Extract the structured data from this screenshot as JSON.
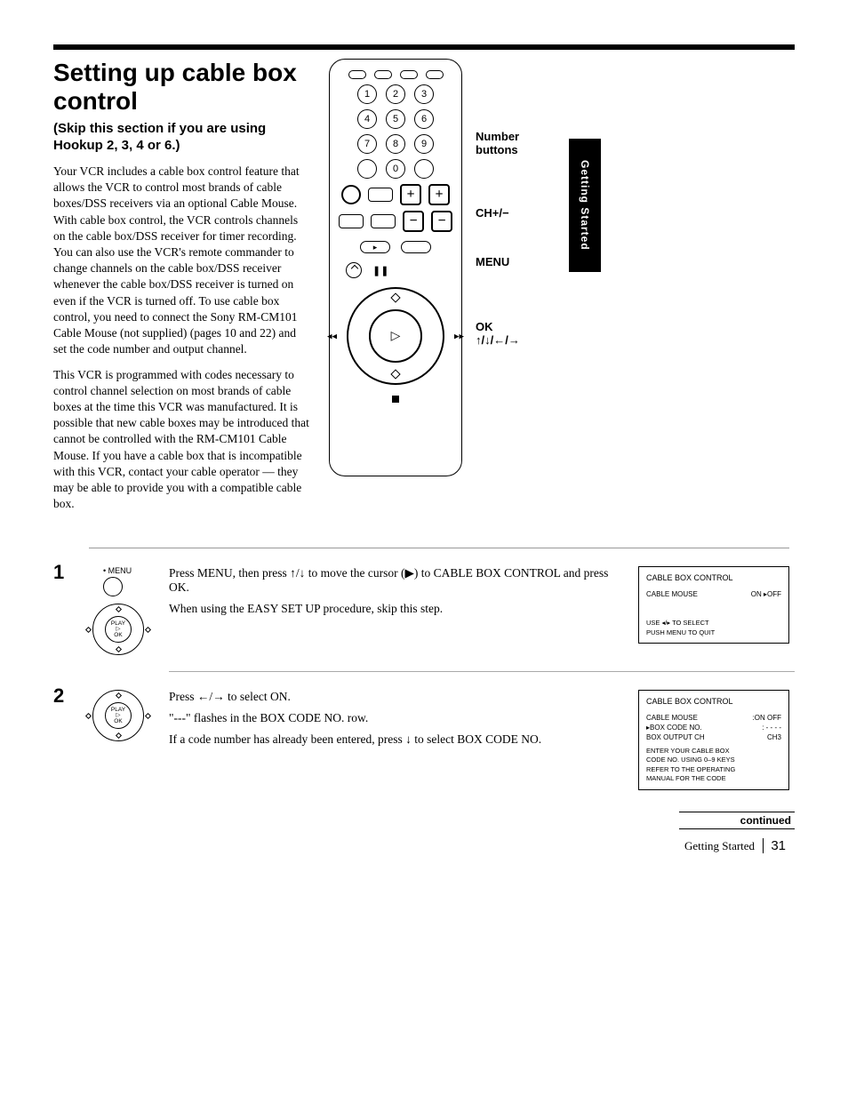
{
  "page": {
    "title": "Setting up cable box control",
    "subtitle": "(Skip this section if you are using Hookup 2, 3, 4 or 6.)",
    "para1": "Your VCR includes a cable box control feature that allows the VCR to control most brands of cable boxes/DSS receivers via an optional Cable Mouse. With cable box control, the VCR controls channels on the cable box/DSS receiver for timer recording. You can also use the VCR's remote commander to change channels on the cable box/DSS receiver whenever the cable box/DSS receiver is turned on even if the VCR is turned off. To use cable box control, you need to connect the Sony RM-CM101 Cable Mouse (not supplied) (pages 10 and 22) and set the code number and output channel.",
    "para2": "This VCR is programmed with codes necessary to control channel selection on most brands of cable boxes at the time this VCR was manufactured. It is possible that new cable boxes may be introduced that cannot be controlled with the RM-CM101 Cable Mouse. If you have a cable box that is incompatible with this VCR, contact your cable operator — they may be able to provide you with a compatible cable box."
  },
  "remote": {
    "num1": "1",
    "num2": "2",
    "num3": "3",
    "num4": "4",
    "num5": "5",
    "num6": "6",
    "num7": "7",
    "num8": "8",
    "num9": "9",
    "num0": "0",
    "plus": "+",
    "minus": "−",
    "menu_pill": "▸",
    "play": "▷"
  },
  "callouts": {
    "c1a": "Number",
    "c1b": "buttons",
    "c2": "CH+/−",
    "c3": "MENU",
    "c4a": "OK",
    "c4b": "↑/↓/←/→"
  },
  "tab": "Getting Started",
  "steps": {
    "s1": {
      "num": "1",
      "menu_label": "• MENU",
      "text1": "Press MENU, then press ↑/↓ to move the cursor (▶) to CABLE BOX CONTROL and press OK.",
      "text2": "When using the EASY SET UP procedure, skip this step."
    },
    "s2": {
      "num": "2",
      "text1": "Press ←/→ to select ON.",
      "text2": "\"---\" flashes in the BOX CODE NO. row.",
      "text3": "If a code number has already been entered, press ↓ to select BOX CODE NO."
    }
  },
  "screens": {
    "sc1": {
      "title": "CABLE BOX CONTROL",
      "row1a": "CABLE MOUSE",
      "row1b": "ON ▸OFF",
      "footer": "USE ◂/▸ TO SELECT\nPUSH MENU TO QUIT"
    },
    "sc2": {
      "title": "CABLE BOX CONTROL",
      "row1a": "CABLE MOUSE",
      "row1b": ":ON  OFF",
      "row2a": "▸BOX CODE NO.",
      "row2b": ": - - - -",
      "row3a": "  BOX OUTPUT CH",
      "row3b": "CH3",
      "footer": "ENTER YOUR CABLE BOX\nCODE NO. USING 0–9 KEYS\nREFER TO THE OPERATING\nMANUAL FOR THE CODE"
    }
  },
  "nav_btn_label1": "PLAY",
  "nav_btn_label2": "OK",
  "continued": "continued",
  "footer_section": "Getting Started",
  "footer_page": "31",
  "colors": {
    "black": "#000000",
    "white": "#ffffff",
    "rule_gray": "#999999"
  }
}
